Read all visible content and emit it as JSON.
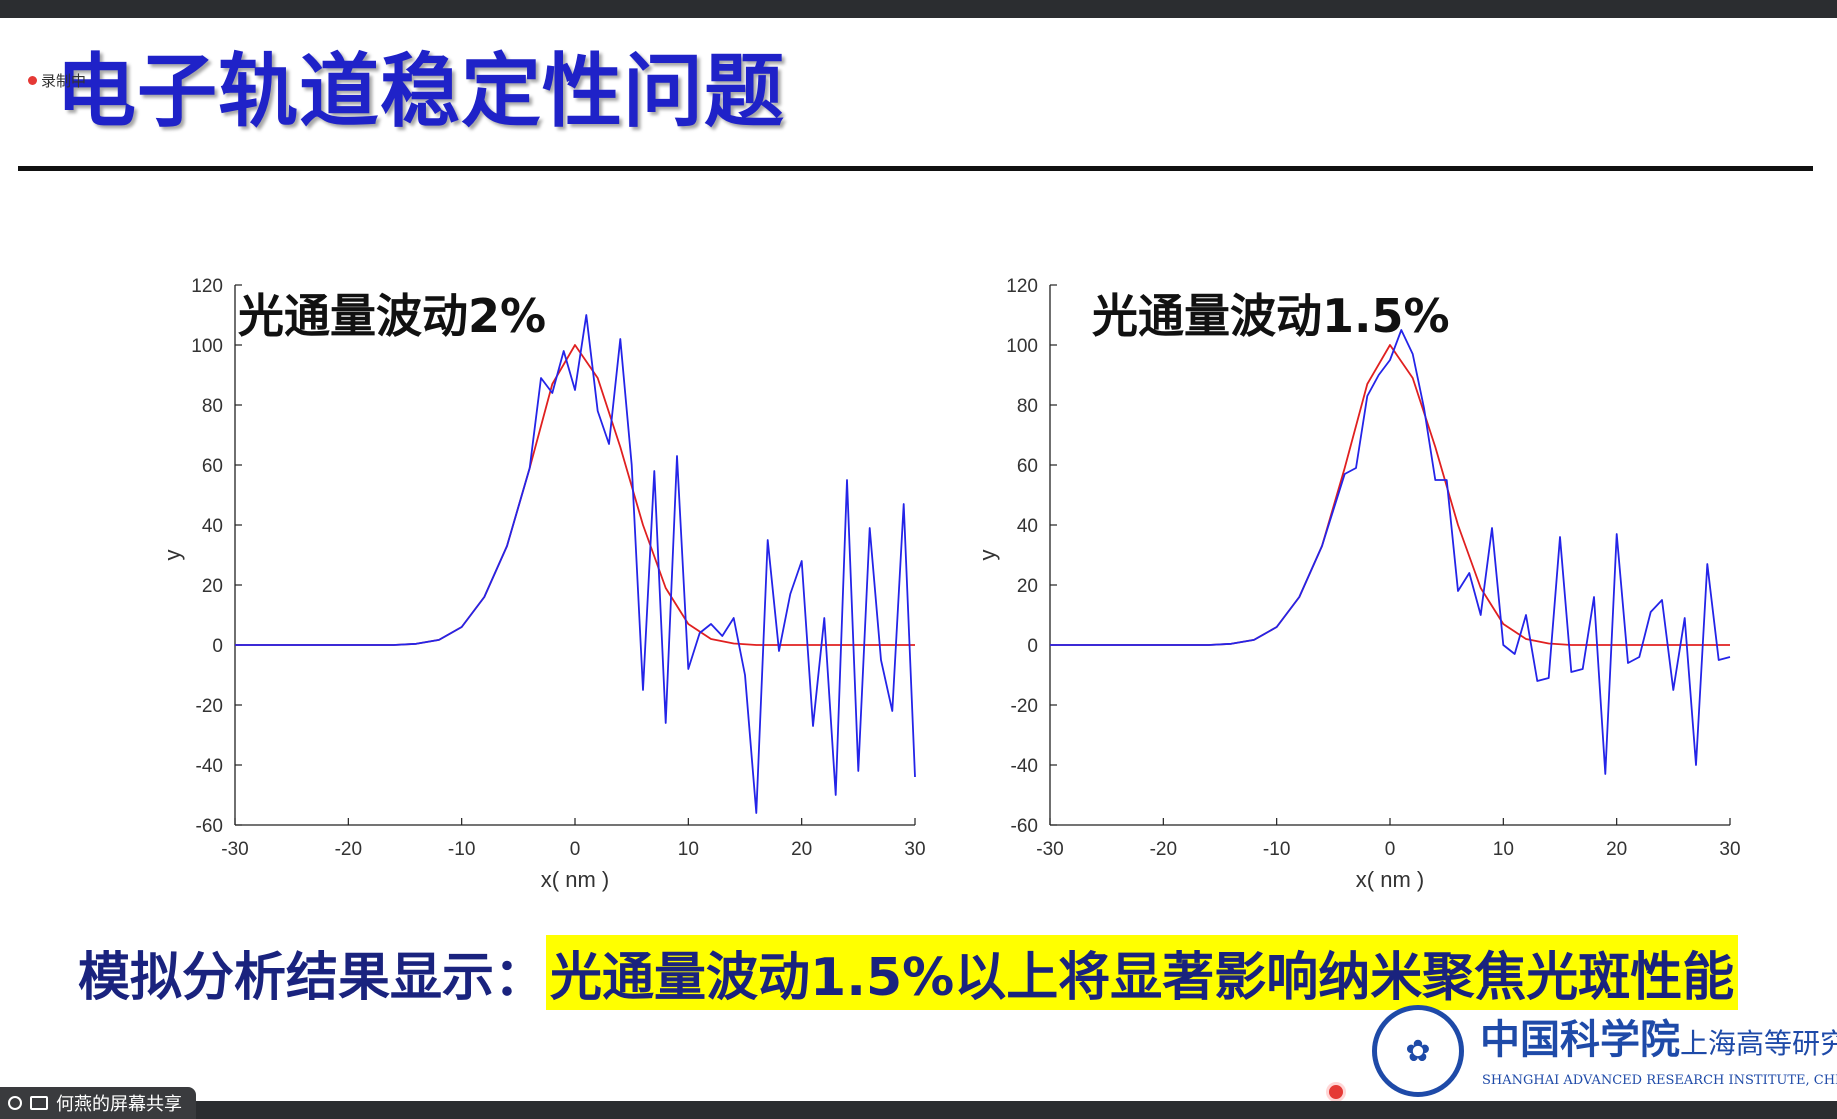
{
  "slide": {
    "title": "电子轨道稳定性问题",
    "recording_label": "录制中",
    "conclusion_lead": "模拟分析结果显示：",
    "conclusion_highlight": "光通量波动1.5%以上将显著影响纳米聚焦光斑性能",
    "logo_cn": "中国科学院",
    "logo_cn2": "上海高等研究",
    "logo_en": "SHANGHAI ADVANCED RESEARCH INSTITUTE, CHINESE ACADEMY OF SCIE",
    "screen_share_label": "何燕的屏幕共享",
    "colors": {
      "title": "#1f22c8",
      "highlight": "#ffff00",
      "conclusion": "#1a237e",
      "simulated": "#2424e8",
      "ideal": "#e02020"
    }
  },
  "chart_data": [
    {
      "type": "line",
      "title": "光通量波动2%",
      "xlabel": "x( nm )",
      "ylabel": "y",
      "xlim": [
        -30,
        30
      ],
      "ylim": [
        -60,
        120
      ],
      "xticks": [
        -30,
        -20,
        -10,
        0,
        10,
        20,
        30
      ],
      "yticks": [
        -60,
        -40,
        -20,
        0,
        20,
        40,
        60,
        80,
        100,
        120
      ],
      "grid": false,
      "series": [
        {
          "color": "#e02020",
          "x": [
            -30,
            -16,
            -14,
            -12,
            -10,
            -8,
            -6,
            -4,
            -2,
            0,
            2,
            4,
            6,
            8,
            10,
            12,
            14,
            16,
            30
          ],
          "y": [
            0,
            0,
            0.4,
            1.7,
            6,
            16,
            33,
            59,
            87,
            100,
            89,
            66,
            40,
            19,
            7,
            2,
            0.5,
            0,
            0
          ]
        },
        {
          "color": "#2424e8",
          "x": [
            -30,
            -16,
            -14,
            -12,
            -10,
            -8,
            -6,
            -4,
            -3,
            -2,
            -1,
            0,
            1,
            2,
            3,
            4,
            5,
            6,
            7,
            8,
            9,
            10,
            11,
            12,
            13,
            14,
            15,
            16,
            17,
            18,
            19,
            20,
            21,
            22,
            23,
            24,
            25,
            26,
            27,
            28,
            29,
            30
          ],
          "y": [
            0,
            0,
            0.4,
            1.7,
            6,
            16,
            33,
            59,
            89,
            84,
            98,
            85,
            110,
            78,
            67,
            102,
            60,
            -15,
            58,
            -26,
            63,
            -8,
            4,
            7,
            3,
            9,
            -10,
            -56,
            35,
            -2,
            17,
            28,
            -27,
            9,
            -50,
            55,
            -42,
            39,
            -5,
            -22,
            47,
            -44
          ]
        }
      ]
    },
    {
      "type": "line",
      "title": "光通量波动1.5%",
      "xlabel": "x( nm )",
      "ylabel": "y",
      "xlim": [
        -30,
        30
      ],
      "ylim": [
        -60,
        120
      ],
      "xticks": [
        -30,
        -20,
        -10,
        0,
        10,
        20,
        30
      ],
      "yticks": [
        -60,
        -40,
        -20,
        0,
        20,
        40,
        60,
        80,
        100,
        120
      ],
      "grid": false,
      "series": [
        {
          "color": "#e02020",
          "x": [
            -30,
            -16,
            -14,
            -12,
            -10,
            -8,
            -6,
            -4,
            -2,
            0,
            2,
            4,
            6,
            8,
            10,
            12,
            14,
            16,
            30
          ],
          "y": [
            0,
            0,
            0.4,
            1.7,
            6,
            16,
            33,
            59,
            87,
            100,
            89,
            66,
            40,
            19,
            7,
            2,
            0.5,
            0,
            0
          ]
        },
        {
          "color": "#2424e8",
          "x": [
            -30,
            -16,
            -14,
            -12,
            -10,
            -8,
            -6,
            -4,
            -3,
            -2,
            -1,
            0,
            1,
            2,
            3,
            4,
            5,
            6,
            7,
            8,
            9,
            10,
            11,
            12,
            13,
            14,
            15,
            16,
            17,
            18,
            19,
            20,
            21,
            22,
            23,
            24,
            25,
            26,
            27,
            28,
            29,
            30
          ],
          "y": [
            0,
            0,
            0.4,
            1.7,
            6,
            16,
            33,
            57,
            59,
            83,
            90,
            95,
            105,
            97,
            79,
            55,
            55,
            18,
            24,
            10,
            39,
            0,
            -3,
            10,
            -12,
            -11,
            36,
            -9,
            -8,
            16,
            -43,
            37,
            -6,
            -4,
            11,
            15,
            -15,
            9,
            -40,
            27,
            -5,
            -4
          ]
        }
      ]
    }
  ]
}
